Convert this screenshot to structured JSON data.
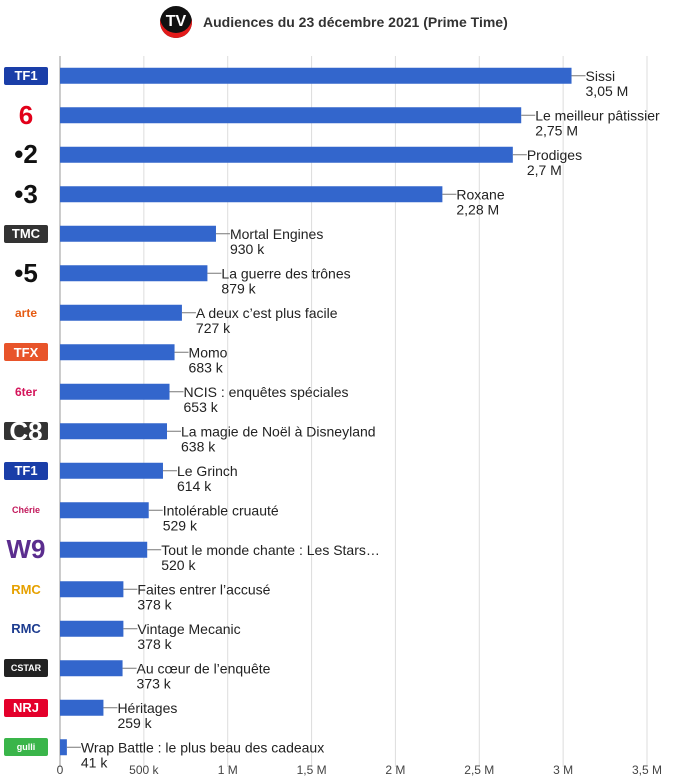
{
  "header": {
    "logo_text": "TV",
    "title": "Audiences du 23 décembre 2021 (Prime Time)"
  },
  "colors": {
    "bar": "#3366cc",
    "grid": "#dddddd",
    "text": "#222222"
  },
  "chart_data": {
    "type": "bar",
    "orientation": "horizontal",
    "title": "Audiences du 23 décembre 2021 (Prime Time)",
    "xlabel": "",
    "ylabel": "",
    "xlim": [
      0,
      3500000
    ],
    "grid": true,
    "x_ticks": [
      {
        "value": 0,
        "label": "0"
      },
      {
        "value": 500000,
        "label": "500 k"
      },
      {
        "value": 1000000,
        "label": "1 M"
      },
      {
        "value": 1500000,
        "label": "1,5 M"
      },
      {
        "value": 2000000,
        "label": "2 M"
      },
      {
        "value": 2500000,
        "label": "2,5 M"
      },
      {
        "value": 3000000,
        "label": "3 M"
      },
      {
        "value": 3500000,
        "label": "3,5 M"
      }
    ],
    "categories": [
      {
        "channel": "TF1",
        "logo_text": "TF1",
        "logo_bg": "#1a3ea8",
        "logo_fg": "#ffffff",
        "program": "Sissi",
        "value": 3050000,
        "value_label": "3,05 M"
      },
      {
        "channel": "M6",
        "logo_text": "6",
        "logo_bg": "#ffffff",
        "logo_fg": "#e2001a",
        "program": "Le meilleur pâtissier",
        "value": 2750000,
        "value_label": "2,75 M"
      },
      {
        "channel": "France 2",
        "logo_text": "•2",
        "logo_bg": "#ffffff",
        "logo_fg": "#111111",
        "program": "Prodiges",
        "value": 2700000,
        "value_label": "2,7 M"
      },
      {
        "channel": "France 3",
        "logo_text": "•3",
        "logo_bg": "#ffffff",
        "logo_fg": "#111111",
        "program": "Roxane",
        "value": 2280000,
        "value_label": "2,28 M"
      },
      {
        "channel": "TMC",
        "logo_text": "TMC",
        "logo_bg": "#333333",
        "logo_fg": "#ffffff",
        "program": "Mortal Engines",
        "value": 930000,
        "value_label": "930 k"
      },
      {
        "channel": "France 5",
        "logo_text": "•5",
        "logo_bg": "#ffffff",
        "logo_fg": "#111111",
        "program": "La guerre des trônes",
        "value": 879000,
        "value_label": "879 k"
      },
      {
        "channel": "Arte",
        "logo_text": "arte",
        "logo_bg": "#ffffff",
        "logo_fg": "#e55b13",
        "program": "A deux c’est plus facile",
        "value": 727000,
        "value_label": "727 k"
      },
      {
        "channel": "TFX",
        "logo_text": "TFX",
        "logo_bg": "#e8542a",
        "logo_fg": "#ffffff",
        "program": "Momo",
        "value": 683000,
        "value_label": "683 k"
      },
      {
        "channel": "6ter",
        "logo_text": "6ter",
        "logo_bg": "#ffffff",
        "logo_fg": "#d4145a",
        "program": "NCIS : enquêtes spéciales",
        "value": 653000,
        "value_label": "653 k"
      },
      {
        "channel": "C8",
        "logo_text": "C8",
        "logo_bg": "#333333",
        "logo_fg": "#ffffff",
        "program": "La magie de Noël à Disneyland",
        "value": 638000,
        "value_label": "638 k"
      },
      {
        "channel": "TF1 Séries Films",
        "logo_text": "TF1",
        "logo_bg": "#1a3ea8",
        "logo_fg": "#ffffff",
        "program": "Le Grinch",
        "value": 614000,
        "value_label": "614 k"
      },
      {
        "channel": "Chérie 25",
        "logo_text": "Chérie",
        "logo_bg": "#ffffff",
        "logo_fg": "#c2185b",
        "program": "Intolérable cruauté",
        "value": 529000,
        "value_label": "529 k"
      },
      {
        "channel": "W9",
        "logo_text": "W9",
        "logo_bg": "#ffffff",
        "logo_fg": "#5b2d8e",
        "program": "Tout le monde chante : Les Stars…",
        "value": 520000,
        "value_label": "520 k"
      },
      {
        "channel": "RMC Story",
        "logo_text": "RMC",
        "logo_bg": "#ffffff",
        "logo_fg": "#e6a100",
        "program": "Faites entrer l’accusé",
        "value": 378000,
        "value_label": "378 k"
      },
      {
        "channel": "RMC Découverte",
        "logo_text": "RMC",
        "logo_bg": "#ffffff",
        "logo_fg": "#1d3c8f",
        "program": "Vintage Mecanic",
        "value": 378000,
        "value_label": "378 k"
      },
      {
        "channel": "CStar",
        "logo_text": "CSTAR",
        "logo_bg": "#222222",
        "logo_fg": "#ffffff",
        "program": "Au cœur de l’enquête",
        "value": 373000,
        "value_label": "373 k"
      },
      {
        "channel": "NRJ 12",
        "logo_text": "NRJ",
        "logo_bg": "#e4002b",
        "logo_fg": "#ffffff",
        "program": "Héritages",
        "value": 259000,
        "value_label": "259 k"
      },
      {
        "channel": "Gulli",
        "logo_text": "gulli",
        "logo_bg": "#3ab54a",
        "logo_fg": "#ffffff",
        "program": "Wrap Battle : le plus beau des cadeaux",
        "value": 41000,
        "value_label": "41 k"
      }
    ]
  }
}
